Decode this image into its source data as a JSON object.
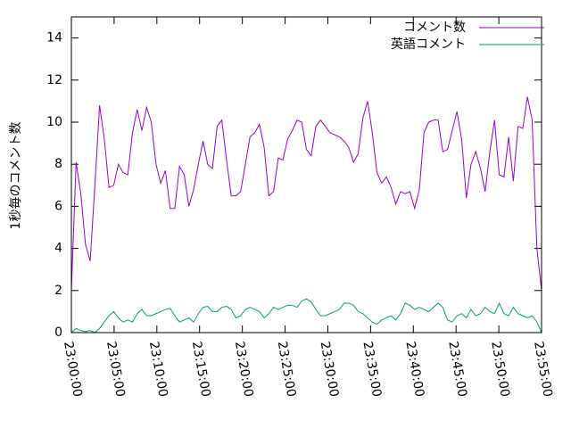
{
  "chart_data": {
    "type": "line",
    "y_label": "1秒毎のコメント数",
    "x": [
      "23:00:00",
      "23:00:33",
      "23:01:06",
      "23:01:39",
      "23:02:12",
      "23:02:45",
      "23:03:18",
      "23:03:51",
      "23:04:24",
      "23:04:57",
      "23:05:30",
      "23:06:03",
      "23:06:36",
      "23:07:09",
      "23:07:42",
      "23:08:15",
      "23:08:48",
      "23:09:21",
      "23:09:54",
      "23:10:27",
      "23:11:00",
      "23:11:33",
      "23:12:06",
      "23:12:39",
      "23:13:12",
      "23:13:45",
      "23:14:18",
      "23:14:51",
      "23:15:24",
      "23:15:57",
      "23:16:30",
      "23:17:03",
      "23:17:36",
      "23:18:09",
      "23:18:42",
      "23:19:15",
      "23:19:48",
      "23:20:21",
      "23:20:54",
      "23:21:27",
      "23:22:00",
      "23:22:33",
      "23:23:06",
      "23:23:39",
      "23:24:12",
      "23:24:45",
      "23:25:18",
      "23:25:51",
      "23:26:24",
      "23:26:57",
      "23:27:30",
      "23:28:03",
      "23:28:36",
      "23:29:09",
      "23:29:42",
      "23:30:15",
      "23:30:48",
      "23:31:21",
      "23:31:54",
      "23:32:27",
      "23:33:00",
      "23:33:33",
      "23:34:06",
      "23:34:39",
      "23:35:12",
      "23:35:45",
      "23:36:18",
      "23:36:51",
      "23:37:24",
      "23:37:57",
      "23:38:30",
      "23:39:03",
      "23:39:36",
      "23:40:09",
      "23:40:42",
      "23:41:15",
      "23:41:48",
      "23:42:21",
      "23:42:54",
      "23:43:27",
      "23:44:00",
      "23:44:33",
      "23:45:06",
      "23:45:39",
      "23:46:12",
      "23:46:45",
      "23:47:18",
      "23:47:51",
      "23:48:24",
      "23:48:57",
      "23:49:30",
      "23:50:03",
      "23:50:36",
      "23:51:09",
      "23:51:42",
      "23:52:15",
      "23:52:48",
      "23:53:21",
      "23:53:54",
      "23:54:27",
      "23:55:00"
    ],
    "series": [
      {
        "name": "コメント数",
        "color": "#9400d3",
        "values": [
          2.0,
          8.1,
          6.6,
          4.2,
          3.4,
          7.0,
          10.8,
          9.2,
          6.9,
          7.0,
          8.0,
          7.6,
          7.5,
          9.5,
          10.6,
          9.6,
          10.7,
          10.0,
          8.0,
          7.1,
          7.7,
          5.9,
          5.9,
          7.9,
          7.5,
          6.0,
          6.8,
          8.0,
          9.1,
          8.0,
          7.8,
          9.8,
          10.1,
          8.2,
          6.5,
          6.5,
          6.7,
          8.0,
          9.3,
          9.5,
          9.9,
          8.8,
          6.5,
          6.7,
          8.3,
          8.2,
          9.2,
          9.6,
          10.1,
          10.0,
          8.7,
          8.4,
          9.8,
          10.1,
          9.8,
          9.5,
          9.4,
          9.3,
          9.1,
          8.8,
          8.1,
          8.5,
          10.2,
          11.0,
          9.5,
          7.6,
          7.1,
          7.4,
          6.9,
          6.1,
          6.7,
          6.6,
          6.7,
          5.9,
          6.8,
          9.5,
          10.0,
          10.1,
          10.1,
          8.6,
          8.7,
          9.6,
          10.5,
          9.2,
          6.4,
          8.0,
          8.6,
          7.8,
          6.7,
          8.6,
          10.1,
          7.5,
          7.4,
          9.3,
          7.2,
          9.8,
          9.7,
          11.2,
          10.1,
          4.0,
          2.0
        ]
      },
      {
        "name": "英語コメント",
        "color": "#009e73",
        "values": [
          0,
          0.2,
          0.1,
          0.05,
          0.1,
          0.0,
          0.2,
          0.5,
          0.8,
          1.0,
          0.7,
          0.5,
          0.6,
          0.5,
          0.9,
          1.1,
          0.8,
          0.8,
          0.9,
          1.0,
          1.1,
          1.15,
          0.8,
          0.5,
          0.6,
          0.7,
          0.5,
          0.9,
          1.2,
          1.25,
          1.0,
          1.0,
          1.2,
          1.25,
          1.1,
          0.7,
          0.8,
          1.1,
          1.2,
          1.1,
          1.0,
          0.7,
          0.9,
          1.2,
          1.1,
          1.2,
          1.3,
          1.3,
          1.2,
          1.5,
          1.6,
          1.45,
          1.1,
          0.8,
          0.8,
          0.9,
          1.0,
          1.1,
          1.4,
          1.4,
          1.3,
          1.0,
          0.9,
          0.7,
          0.5,
          0.4,
          0.6,
          0.7,
          0.8,
          0.6,
          0.9,
          1.4,
          1.3,
          1.1,
          1.2,
          1.1,
          1.0,
          1.2,
          1.4,
          1.2,
          0.6,
          0.5,
          0.8,
          0.9,
          0.7,
          1.1,
          0.8,
          0.9,
          1.2,
          1.0,
          0.9,
          1.4,
          0.9,
          0.8,
          1.2,
          0.9,
          0.8,
          0.7,
          0.8,
          0.5,
          0.0
        ]
      }
    ],
    "xlim": [
      "23:00:00",
      "23:55:00"
    ],
    "xticks": [
      "23:00:00",
      "23:05:00",
      "23:10:00",
      "23:15:00",
      "23:20:00",
      "23:25:00",
      "23:30:00",
      "23:35:00",
      "23:40:00",
      "23:45:00",
      "23:50:00",
      "23:55:00"
    ],
    "ylim": [
      0,
      15
    ],
    "yticks": [
      0,
      2,
      4,
      6,
      8,
      10,
      12,
      14
    ],
    "legend": "top-right",
    "grid": false
  }
}
